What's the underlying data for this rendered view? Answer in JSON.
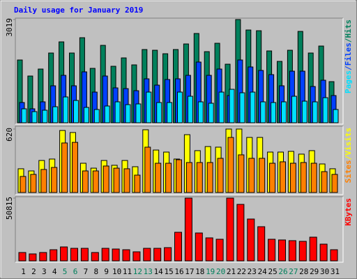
{
  "chart_data": [
    {
      "type": "bar",
      "title": "Daily usage for January 2019",
      "title_color": "#0000ff",
      "ylim": [
        0,
        3019
      ],
      "yticks": [
        3019
      ],
      "legend_separator": "/",
      "series": [
        {
          "name": "Hits",
          "color": "#00805c",
          "values": [
            1836,
            1367,
            1571,
            2040,
            2366,
            2040,
            2488,
            1591,
            2264,
            1652,
            1897,
            1693,
            2142,
            2121,
            2019,
            2142,
            2305,
            2611,
            2080,
            2325,
            1713,
            3019,
            2713,
            2692,
            2101,
            1795,
            2121,
            2672,
            2040,
            2244,
            1203
          ]
        },
        {
          "name": "Files",
          "color": "#0040ff",
          "values": [
            592,
            408,
            612,
            1081,
            1387,
            1081,
            1489,
            897,
            1367,
            1020,
            999,
            938,
            1285,
            1101,
            1265,
            1285,
            1387,
            1775,
            1387,
            1571,
            796,
            1836,
            1632,
            1530,
            1408,
            1081,
            1509,
            1509,
            1061,
            1244,
            796
          ]
        },
        {
          "name": "Pages",
          "color": "#00e0ff",
          "values": [
            408,
            326,
            367,
            469,
            755,
            653,
            449,
            388,
            490,
            612,
            530,
            551,
            897,
            592,
            592,
            897,
            775,
            612,
            571,
            897,
            979,
            877,
            897,
            612,
            592,
            612,
            775,
            632,
            612,
            734,
            388
          ]
        }
      ]
    },
    {
      "type": "bar",
      "ylim": [
        0,
        620
      ],
      "yticks": [
        620
      ],
      "legend_separator": "/",
      "series": [
        {
          "name": "Visits",
          "color": "#ffff00",
          "values": [
            232,
            211,
            313,
            327,
            606,
            586,
            286,
            238,
            313,
            266,
            313,
            252,
            613,
            415,
            395,
            327,
            565,
            409,
            449,
            443,
            620,
            620,
            538,
            538,
            395,
            395,
            402,
            375,
            409,
            279,
            232
          ]
        },
        {
          "name": "Sites",
          "color": "#ff8000",
          "values": [
            157,
            177,
            225,
            245,
            484,
            490,
            211,
            211,
            259,
            238,
            232,
            170,
            443,
            286,
            286,
            320,
            293,
            293,
            293,
            334,
            538,
            368,
            334,
            334,
            286,
            300,
            286,
            293,
            286,
            204,
            177
          ]
        }
      ]
    },
    {
      "type": "bar",
      "ylim": [
        0,
        50815
      ],
      "yticks": [
        50815
      ],
      "categories": [
        "1",
        "2",
        "3",
        "4",
        "5",
        "6",
        "7",
        "8",
        "9",
        "10",
        "11",
        "12",
        "13",
        "14",
        "15",
        "16",
        "17",
        "18",
        "19",
        "20",
        "21",
        "22",
        "23",
        "24",
        "25",
        "26",
        "27",
        "28",
        "29",
        "30",
        "31"
      ],
      "category_colors": [
        "#000000",
        "#000000",
        "#000000",
        "#000000",
        "#00805c",
        "#00805c",
        "#000000",
        "#000000",
        "#000000",
        "#000000",
        "#000000",
        "#00805c",
        "#00805c",
        "#000000",
        "#000000",
        "#000000",
        "#000000",
        "#000000",
        "#00805c",
        "#00805c",
        "#000000",
        "#000000",
        "#000000",
        "#000000",
        "#000000",
        "#00805c",
        "#00805c",
        "#000000",
        "#000000",
        "#000000",
        "#000000"
      ],
      "series": [
        {
          "name": "KBytes",
          "color": "#ff0000",
          "values": [
            6775,
            5646,
            6775,
            9034,
            11292,
            10163,
            10163,
            6775,
            10163,
            9598,
            9034,
            7340,
            10163,
            10163,
            10728,
            23149,
            50815,
            22584,
            18632,
            17503,
            50815,
            45734,
            33877,
            27666,
            17503,
            16938,
            16374,
            15809,
            19197,
            13551,
            9034
          ]
        }
      ]
    }
  ]
}
